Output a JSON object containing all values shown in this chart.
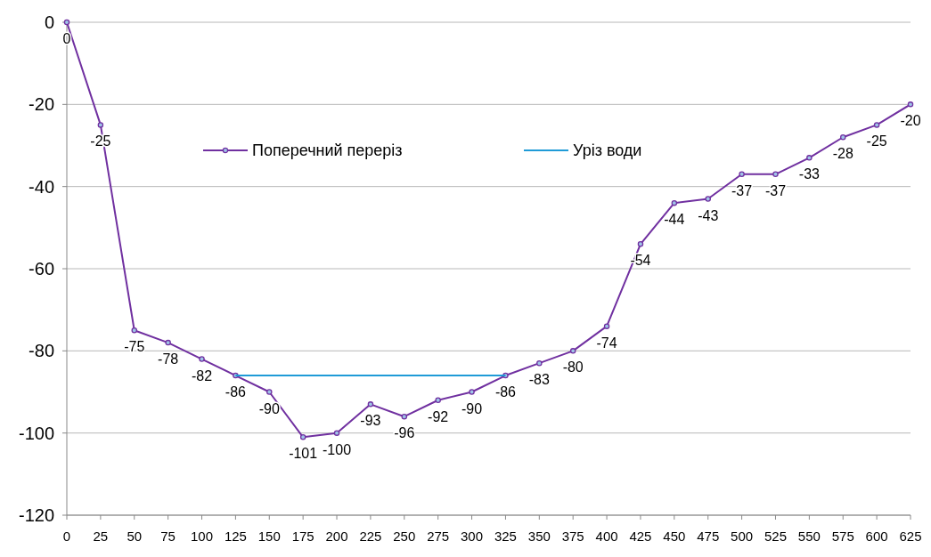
{
  "chart_data": {
    "type": "line",
    "x": [
      0,
      25,
      50,
      75,
      100,
      125,
      150,
      175,
      200,
      225,
      250,
      275,
      300,
      325,
      350,
      375,
      400,
      425,
      450,
      475,
      500,
      525,
      550,
      575,
      600,
      625
    ],
    "xlim": [
      0,
      625
    ],
    "xticks": [
      0,
      25,
      50,
      75,
      100,
      125,
      150,
      175,
      200,
      225,
      250,
      275,
      300,
      325,
      350,
      375,
      400,
      425,
      450,
      475,
      500,
      525,
      550,
      575,
      600,
      625
    ],
    "ylim": [
      -120,
      0
    ],
    "yticks": [
      -120,
      -100,
      -80,
      -60,
      -40,
      -20,
      0
    ],
    "grid": "y",
    "legend": "top",
    "series": [
      {
        "name": "Поперечний переріз",
        "color": "#7030a0",
        "marker": "circle",
        "values": [
          0,
          -25,
          -75,
          -78,
          -82,
          -86,
          -90,
          -101,
          -100,
          -93,
          -96,
          -92,
          -90,
          -86,
          -83,
          -80,
          -74,
          -54,
          -44,
          -43,
          -37,
          -37,
          -33,
          -28,
          -25,
          -20
        ],
        "value_labels": [
          "0",
          "-25",
          "-75",
          "-78",
          "-82",
          "-86",
          "-90",
          "-101",
          "-100",
          "-93",
          "-96",
          "-92",
          "-90",
          "-86",
          "-83",
          "-80",
          "-74",
          "-54",
          "-44",
          "-43",
          "-37",
          "-37",
          "-33",
          "-28",
          "-25",
          "-20"
        ]
      },
      {
        "name": "Уріз води",
        "color": "#1f9bd7",
        "marker": "none",
        "x": [
          125,
          325
        ],
        "values": [
          -86,
          -86
        ]
      }
    ]
  }
}
